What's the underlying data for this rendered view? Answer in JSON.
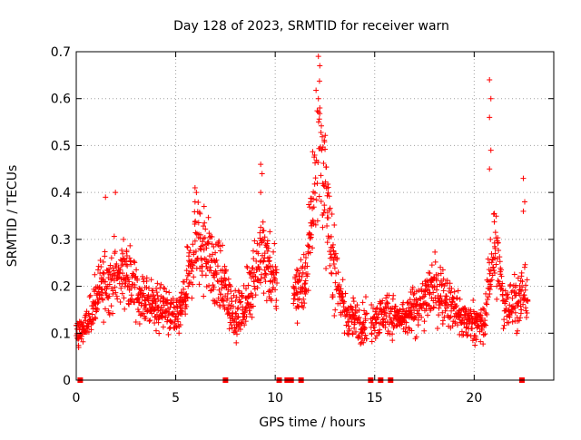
{
  "chart_data": {
    "type": "scatter",
    "title": "Day 128 of 2023, SRMTID for receiver warn",
    "xlabel": "GPS time / hours",
    "ylabel": "SRMTID / TECUs",
    "xlim": [
      0,
      24
    ],
    "ylim": [
      0,
      0.7
    ],
    "x_ticks": [
      0,
      5,
      10,
      15,
      20
    ],
    "x_tick_labels": [
      "0",
      "5",
      "10",
      "15",
      "20"
    ],
    "y_ticks": [
      0,
      0.1,
      0.2,
      0.3,
      0.4,
      0.5,
      0.6,
      0.7
    ],
    "y_tick_labels": [
      "0",
      "0.1",
      "0.2",
      "0.3",
      "0.4",
      "0.5",
      "0.6",
      "0.7"
    ],
    "grid": true,
    "marker": "plus",
    "color": "#ff0000",
    "series": [
      {
        "name": "SRMTID",
        "x_range": [
          0.0,
          22.7
        ],
        "y_range": [
          0.04,
          0.69
        ],
        "anchors": [
          {
            "x": 0.0,
            "y": 0.1
          },
          {
            "x": 0.5,
            "y": 0.11
          },
          {
            "x": 1.0,
            "y": 0.17
          },
          {
            "x": 1.5,
            "y": 0.22
          },
          {
            "x": 2.0,
            "y": 0.22
          },
          {
            "x": 2.5,
            "y": 0.24
          },
          {
            "x": 3.0,
            "y": 0.18
          },
          {
            "x": 4.0,
            "y": 0.16
          },
          {
            "x": 4.5,
            "y": 0.15
          },
          {
            "x": 5.0,
            "y": 0.13
          },
          {
            "x": 5.5,
            "y": 0.18
          },
          {
            "x": 6.0,
            "y": 0.3
          },
          {
            "x": 6.5,
            "y": 0.28
          },
          {
            "x": 7.0,
            "y": 0.22
          },
          {
            "x": 7.5,
            "y": 0.2
          },
          {
            "x": 8.0,
            "y": 0.13
          },
          {
            "x": 8.5,
            "y": 0.16
          },
          {
            "x": 9.0,
            "y": 0.24
          },
          {
            "x": 9.5,
            "y": 0.27
          },
          {
            "x": 10.0,
            "y": 0.2
          },
          {
            "x": 11.5,
            "y": 0.2
          },
          {
            "x": 12.0,
            "y": 0.45
          },
          {
            "x": 12.3,
            "y": 0.5
          },
          {
            "x": 12.8,
            "y": 0.28
          },
          {
            "x": 13.5,
            "y": 0.14
          },
          {
            "x": 14.5,
            "y": 0.12
          },
          {
            "x": 15.5,
            "y": 0.14
          },
          {
            "x": 16.5,
            "y": 0.13
          },
          {
            "x": 17.5,
            "y": 0.17
          },
          {
            "x": 18.0,
            "y": 0.2
          },
          {
            "x": 18.5,
            "y": 0.18
          },
          {
            "x": 19.5,
            "y": 0.13
          },
          {
            "x": 20.5,
            "y": 0.12
          },
          {
            "x": 21.0,
            "y": 0.3
          },
          {
            "x": 21.5,
            "y": 0.16
          },
          {
            "x": 22.0,
            "y": 0.17
          },
          {
            "x": 22.7,
            "y": 0.18
          }
        ],
        "spikes": [
          {
            "x": 12.2,
            "values": [
              0.69,
              0.67,
              0.6,
              0.58
            ]
          },
          {
            "x": 20.8,
            "values": [
              0.64,
              0.6,
              0.56,
              0.49,
              0.45
            ]
          },
          {
            "x": 1.5,
            "values": [
              0.39
            ]
          },
          {
            "x": 2.0,
            "values": [
              0.4
            ]
          },
          {
            "x": 6.0,
            "values": [
              0.41,
              0.4,
              0.38
            ]
          },
          {
            "x": 9.3,
            "values": [
              0.46,
              0.44,
              0.4
            ]
          },
          {
            "x": 22.5,
            "values": [
              0.43,
              0.38,
              0.36
            ]
          }
        ],
        "gaps": [
          [
            10.1,
            10.9
          ],
          [
            14.6,
            14.8
          ]
        ]
      }
    ],
    "gap_markers_x": [
      0.2,
      7.5,
      10.2,
      10.6,
      10.8,
      11.3,
      14.8,
      15.3,
      15.8,
      22.4
    ]
  }
}
